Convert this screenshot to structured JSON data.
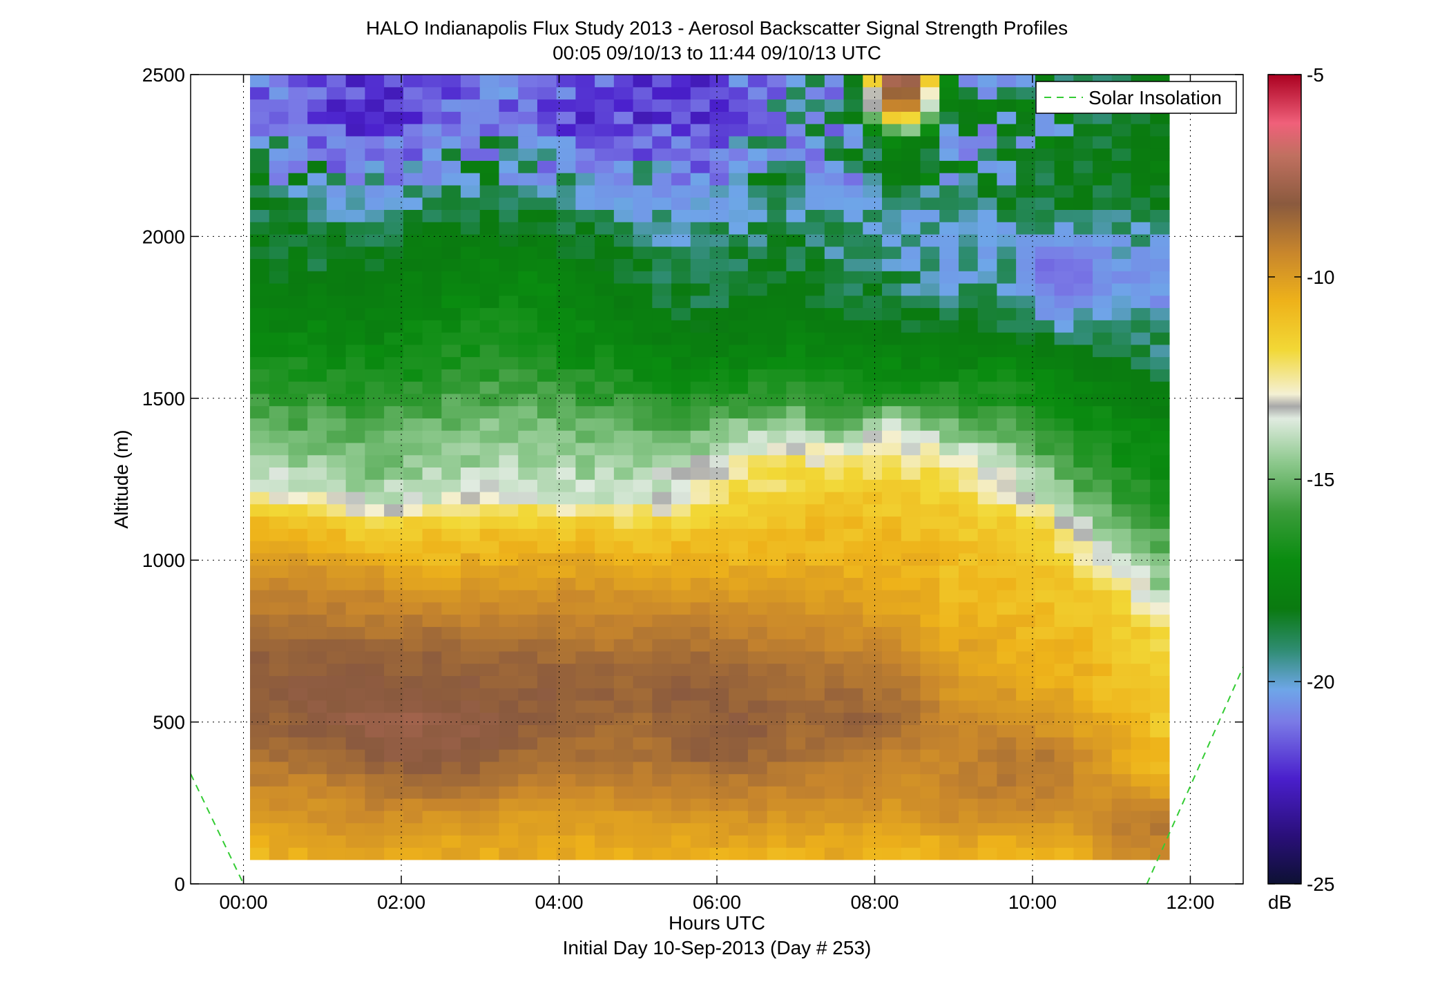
{
  "chart_data": {
    "type": "heatmap",
    "title": "HALO Indianapolis Flux Study 2013 - Aerosol Backscatter Signal Strength Profiles",
    "subtitle": "00:05 09/10/13 to 11:44 09/10/13  UTC",
    "xlabel": "Hours UTC",
    "xlabel_sub": "Initial Day 10-Sep-2013 (Day # 253)",
    "ylabel": "Altitude (m)",
    "xlim": [
      -0.67,
      12.67
    ],
    "ylim": [
      0,
      2500
    ],
    "grid": true,
    "x_ticks": [
      {
        "value": 0,
        "label": "00:00"
      },
      {
        "value": 2,
        "label": "02:00"
      },
      {
        "value": 4,
        "label": "04:00"
      },
      {
        "value": 6,
        "label": "06:00"
      },
      {
        "value": 8,
        "label": "08:00"
      },
      {
        "value": 10,
        "label": "10:00"
      },
      {
        "value": 12,
        "label": "12:00"
      }
    ],
    "y_ticks": [
      {
        "value": 0,
        "label": "0"
      },
      {
        "value": 500,
        "label": "500"
      },
      {
        "value": 1000,
        "label": "1000"
      },
      {
        "value": 1500,
        "label": "1500"
      },
      {
        "value": 2000,
        "label": "2000"
      },
      {
        "value": 2500,
        "label": "2500"
      }
    ],
    "colorbar": {
      "label": "dB",
      "range": [
        -25,
        -5
      ],
      "ticks": [
        {
          "value": -5,
          "label": "-5"
        },
        {
          "value": -10,
          "label": "-10"
        },
        {
          "value": -15,
          "label": "-15"
        },
        {
          "value": -20,
          "label": "-20"
        },
        {
          "value": -25,
          "label": "-25"
        }
      ]
    },
    "heatmap": {
      "x_start_hours": 0.083,
      "x_end_hours": 11.733,
      "y_start_m": 75,
      "y_end_m": 2500,
      "profile_times_hours": [
        0.33,
        1.0,
        1.67,
        2.33,
        3.0,
        3.67,
        4.33,
        5.0,
        5.67,
        6.33,
        7.0,
        7.67,
        8.33,
        9.0,
        9.67,
        10.33,
        11.0,
        11.6
      ],
      "altitude_levels_m": [
        100,
        200,
        300,
        400,
        500,
        600,
        700,
        800,
        900,
        1000,
        1100,
        1200,
        1300,
        1400,
        1500,
        1600,
        1700,
        1800,
        1900,
        2000,
        2100,
        2200,
        2300,
        2400,
        2500
      ],
      "values_db": [
        [
          -12.5,
          -12.0,
          -12.0,
          -12.3,
          -12.3,
          -12.3,
          -12.4,
          -12.4,
          -12.3,
          -12.3,
          -12.4,
          -12.4,
          -12.6,
          -12.6,
          -12.7,
          -12.8,
          -11.4,
          -11.0
        ],
        [
          -11.6,
          -11.5,
          -11.3,
          -11.5,
          -11.6,
          -11.8,
          -11.8,
          -11.7,
          -11.6,
          -11.5,
          -11.6,
          -11.7,
          -11.7,
          -11.3,
          -11.3,
          -11.4,
          -10.8,
          -10.5
        ],
        [
          -11.0,
          -11.0,
          -10.5,
          -10.3,
          -10.5,
          -11.0,
          -11.0,
          -11.0,
          -10.8,
          -10.7,
          -11.0,
          -11.0,
          -11.3,
          -11.1,
          -10.6,
          -10.8,
          -11.6,
          -12.0
        ],
        [
          -10.3,
          -10.0,
          -9.5,
          -9.2,
          -9.5,
          -10.2,
          -10.3,
          -10.4,
          -9.8,
          -9.8,
          -10.3,
          -10.5,
          -11.0,
          -11.0,
          -10.5,
          -10.7,
          -12.0,
          -12.8
        ],
        [
          -9.8,
          -9.5,
          -9.0,
          -9.0,
          -9.3,
          -9.7,
          -10.0,
          -10.2,
          -9.6,
          -9.6,
          -10.0,
          -9.8,
          -10.2,
          -11.2,
          -11.3,
          -11.8,
          -12.5,
          -13.3
        ],
        [
          -9.6,
          -9.4,
          -9.3,
          -9.4,
          -9.5,
          -9.6,
          -9.6,
          -9.8,
          -9.6,
          -9.8,
          -10.2,
          -10.0,
          -10.4,
          -11.5,
          -11.8,
          -12.3,
          -12.8,
          -13.6
        ],
        [
          -9.8,
          -9.7,
          -9.8,
          -9.8,
          -10.0,
          -10.0,
          -10.2,
          -10.3,
          -10.0,
          -10.2,
          -10.5,
          -10.8,
          -11.0,
          -12.0,
          -12.3,
          -12.5,
          -13.0,
          -13.8
        ],
        [
          -10.4,
          -10.4,
          -10.6,
          -10.4,
          -10.8,
          -10.8,
          -10.8,
          -10.9,
          -10.8,
          -11.0,
          -11.2,
          -11.4,
          -11.8,
          -12.4,
          -12.6,
          -12.8,
          -13.3,
          -14.0
        ],
        [
          -10.9,
          -10.9,
          -11.1,
          -11.8,
          -11.3,
          -11.4,
          -11.3,
          -11.5,
          -11.6,
          -11.7,
          -11.8,
          -12.0,
          -12.2,
          -12.8,
          -12.9,
          -13.2,
          -13.9,
          -15.8
        ],
        [
          -11.8,
          -11.8,
          -12.0,
          -12.6,
          -12.4,
          -12.4,
          -12.3,
          -12.5,
          -12.5,
          -12.5,
          -12.5,
          -12.4,
          -12.4,
          -13.0,
          -13.2,
          -13.5,
          -15.0,
          -16.5
        ],
        [
          -12.6,
          -13.0,
          -14.0,
          -13.2,
          -13.3,
          -13.2,
          -13.4,
          -13.5,
          -13.6,
          -13.2,
          -12.9,
          -12.9,
          -12.9,
          -13.3,
          -13.5,
          -14.3,
          -16.6,
          -17.3
        ],
        [
          -15.0,
          -15.2,
          -15.8,
          -15.5,
          -15.3,
          -15.3,
          -15.6,
          -15.6,
          -14.8,
          -14.0,
          -13.6,
          -13.4,
          -13.4,
          -13.7,
          -14.5,
          -16.0,
          -17.5,
          -18.0
        ],
        [
          -16.0,
          -16.2,
          -16.5,
          -16.2,
          -15.9,
          -15.8,
          -16.0,
          -16.0,
          -15.5,
          -14.6,
          -14.4,
          -14.3,
          -14.3,
          -14.6,
          -15.5,
          -17.0,
          -18.0,
          -18.5
        ],
        [
          -16.6,
          -16.8,
          -17.0,
          -16.6,
          -16.2,
          -16.2,
          -16.6,
          -16.8,
          -17.0,
          -16.0,
          -15.8,
          -16.5,
          -15.0,
          -16.5,
          -17.0,
          -18.0,
          -18.5,
          -19.0
        ],
        [
          -17.4,
          -17.6,
          -17.8,
          -17.4,
          -17.0,
          -17.0,
          -17.4,
          -17.6,
          -18.0,
          -17.6,
          -17.4,
          -17.8,
          -17.6,
          -17.8,
          -18.0,
          -18.6,
          -19.0,
          -19.5
        ],
        [
          -18.2,
          -18.3,
          -18.5,
          -18.1,
          -17.8,
          -17.8,
          -18.2,
          -18.6,
          -19.0,
          -18.8,
          -18.6,
          -18.8,
          -18.8,
          -18.8,
          -18.9,
          -19.2,
          -19.4,
          -19.8
        ],
        [
          -18.8,
          -18.9,
          -19.0,
          -18.6,
          -18.3,
          -18.3,
          -18.8,
          -19.2,
          -19.5,
          -19.4,
          -19.2,
          -19.4,
          -19.5,
          -19.6,
          -19.7,
          -19.8,
          -19.9,
          -20.0
        ],
        [
          -19.2,
          -19.3,
          -19.4,
          -19.0,
          -18.8,
          -18.7,
          -19.2,
          -19.5,
          -19.8,
          -19.7,
          -19.5,
          -19.7,
          -19.8,
          -19.9,
          -19.9,
          -21.0,
          -20.2,
          -20.5
        ],
        [
          -19.5,
          -19.6,
          -19.6,
          -19.3,
          -19.1,
          -19.0,
          -19.5,
          -19.7,
          -19.9,
          -19.8,
          -19.7,
          -19.9,
          -20.0,
          -20.2,
          -20.1,
          -21.5,
          -20.5,
          -20.5
        ],
        [
          -19.6,
          -19.8,
          -19.8,
          -19.6,
          -19.5,
          -19.4,
          -19.7,
          -19.9,
          -20.0,
          -19.9,
          -19.8,
          -20.0,
          -20.2,
          -20.3,
          -20.2,
          -20.3,
          -20.2,
          -20.1
        ],
        [
          -19.8,
          -20.0,
          -20.1,
          -19.9,
          -19.8,
          -19.8,
          -20.1,
          -20.3,
          -20.3,
          -20.1,
          -20.0,
          -20.2,
          -20.1,
          -20.0,
          -19.8,
          -19.8,
          -19.7,
          -19.6
        ],
        [
          -20.0,
          -20.5,
          -20.8,
          -20.3,
          -20.0,
          -20.3,
          -20.8,
          -20.7,
          -21.0,
          -20.4,
          -20.1,
          -20.3,
          -19.6,
          -19.9,
          -19.8,
          -19.6,
          -19.5,
          -19.4
        ],
        [
          -20.3,
          -21.0,
          -21.8,
          -21.0,
          -20.5,
          -21.0,
          -21.5,
          -21.3,
          -21.7,
          -21.0,
          -20.4,
          -20.5,
          -18.6,
          -20.2,
          -20.0,
          -19.8,
          -19.6,
          -19.4
        ],
        [
          -20.8,
          -21.5,
          -22.6,
          -21.7,
          -21.0,
          -21.4,
          -21.9,
          -22.0,
          -22.4,
          -21.4,
          -20.6,
          -20.8,
          -9.0,
          -20.3,
          -20.0,
          -20.0,
          -19.8,
          -19.6
        ],
        [
          -21.2,
          -21.6,
          -22.0,
          -21.5,
          -20.8,
          -20.9,
          -21.3,
          -21.6,
          -22.0,
          -21.0,
          -20.6,
          -20.7,
          -5.5,
          -20.2,
          -20.1,
          -19.9,
          -19.7,
          -19.5
        ]
      ]
    },
    "series": [
      {
        "name": "Solar Insolation",
        "color": "#33cc33",
        "style": "dashed",
        "x": [
          -0.67,
          0.0,
          11.45,
          12.67
        ],
        "y": [
          340,
          0,
          0,
          670
        ]
      }
    ],
    "legend": {
      "entries": [
        "Solar Insolation"
      ],
      "placement": "top-right"
    }
  }
}
